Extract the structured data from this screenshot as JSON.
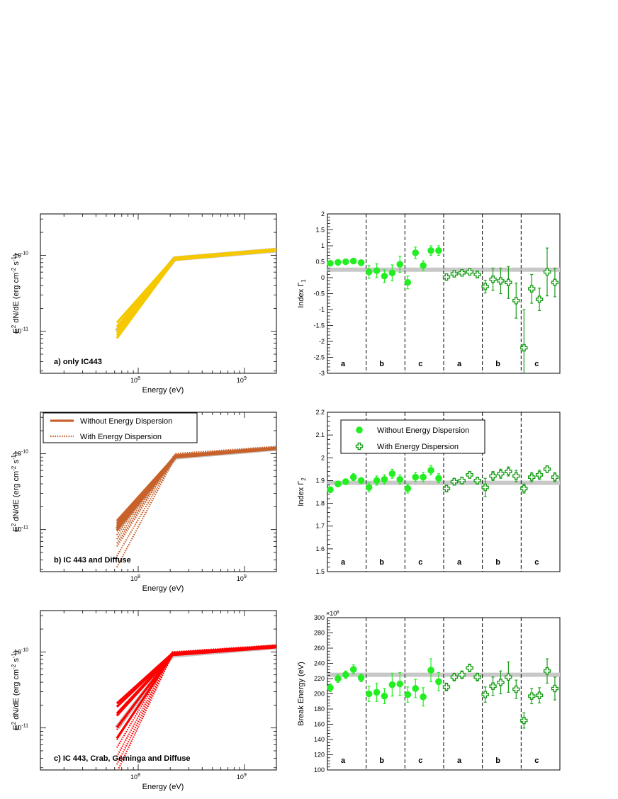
{
  "chart_data": [
    {
      "id": "sed-a",
      "type": "line",
      "xlabel": "Energy (eV)",
      "ylabel": "E^2 dN/dE (erg cm^-2 s^-1)",
      "xscale": "log",
      "yscale": "log",
      "xlim": [
        12000000,
        2000000000
      ],
      "ylim": [
        2.8e-12,
        3.5e-10
      ],
      "x_ticks": [
        {
          "v": 100000000,
          "base": "10",
          "exp": "8"
        },
        {
          "v": 1000000000,
          "base": "10",
          "exp": "9"
        }
      ],
      "y_ticks": [
        {
          "v": 1e-11,
          "base": "10",
          "exp": "-11"
        },
        {
          "v": 1e-10,
          "base": "10",
          "exp": "-10"
        }
      ],
      "annotation": "a) only IC443",
      "reference": {
        "color": "#c8c8c8",
        "low": 1e-11,
        "break": 9e-11,
        "high": 1.17e-10
      },
      "series": [
        {
          "color": "#f5c800",
          "style": "solid",
          "break_energy": 220000000,
          "e_min": 63000000,
          "curves": [
            [
              1.3e-11,
              9.3e-11,
              1.2e-10
            ],
            [
              1.15e-11,
              9.1e-11,
              1.19e-10
            ],
            [
              1.05e-11,
              9e-11,
              1.18e-10
            ],
            [
              9.6e-12,
              8.9e-11,
              1.17e-10
            ],
            [
              8.8e-12,
              8.8e-11,
              1.16e-10
            ],
            [
              8.1e-12,
              8.7e-11,
              1.15e-10
            ]
          ]
        }
      ]
    },
    {
      "id": "sed-b",
      "type": "line",
      "xlabel": "Energy (eV)",
      "ylabel": "E^2 dN/dE (erg cm^-2 s^-1)",
      "xscale": "log",
      "yscale": "log",
      "xlim": [
        12000000,
        2000000000
      ],
      "ylim": [
        2.8e-12,
        3.5e-10
      ],
      "x_ticks": [
        {
          "v": 100000000,
          "base": "10",
          "exp": "8"
        },
        {
          "v": 1000000000,
          "base": "10",
          "exp": "9"
        }
      ],
      "y_ticks": [
        {
          "v": 1e-11,
          "base": "10",
          "exp": "-11"
        },
        {
          "v": 1e-10,
          "base": "10",
          "exp": "-10"
        }
      ],
      "annotation": "b) IC 443 and Diffuse",
      "legend": [
        "Without Energy Dispersion",
        "With Energy Dispersion"
      ],
      "reference": {
        "color": "#c8c8c8",
        "low": 1e-11,
        "break": 9e-11,
        "high": 1.17e-10
      },
      "series": [
        {
          "name": "Without Energy Dispersion",
          "color": "#c8622a",
          "style": "solid",
          "break_energy": 225000000,
          "e_min": 63000000,
          "curves": [
            [
              1.3e-11,
              9.4e-11,
              1.19e-10
            ],
            [
              1.2e-11,
              9.2e-11,
              1.18e-10
            ],
            [
              1.12e-11,
              9.1e-11,
              1.17e-10
            ],
            [
              1.05e-11,
              9e-11,
              1.16e-10
            ],
            [
              9.8e-12,
              8.9e-11,
              1.15e-10
            ]
          ]
        },
        {
          "name": "With Energy Dispersion",
          "color": "#c8622a",
          "style": "dotted",
          "break_energy": 225000000,
          "e_min": 63000000,
          "curves": [
            [
              9.5e-12,
              1e-10,
              1.24e-10
            ],
            [
              8.5e-12,
              9.8e-11,
              1.22e-10
            ],
            [
              7.5e-12,
              9.6e-11,
              1.2e-10
            ],
            [
              6.6e-12,
              9.5e-11,
              1.18e-10
            ],
            [
              6e-12,
              9.4e-11,
              1.17e-10
            ],
            [
              4.5e-12,
              9.3e-11,
              1.16e-10
            ],
            [
              3.2e-12,
              9.2e-11,
              1.15e-10
            ]
          ]
        }
      ]
    },
    {
      "id": "sed-c",
      "type": "line",
      "xlabel": "Energy (eV)",
      "ylabel": "E^2 dN/dE (erg cm^-2 s^-1)",
      "xscale": "log",
      "yscale": "log",
      "xlim": [
        12000000,
        2000000000
      ],
      "ylim": [
        2.8e-12,
        3.5e-10
      ],
      "x_ticks": [
        {
          "v": 100000000,
          "base": "10",
          "exp": "8"
        },
        {
          "v": 1000000000,
          "base": "10",
          "exp": "9"
        }
      ],
      "y_ticks": [
        {
          "v": 1e-11,
          "base": "10",
          "exp": "-11"
        },
        {
          "v": 1e-10,
          "base": "10",
          "exp": "-10"
        }
      ],
      "annotation": "c) IC 443, Crab, Geminga and Diffuse",
      "reference": {
        "color": "#c8c8c8",
        "low": 1e-11,
        "break": 9e-11,
        "high": 1.17e-10
      },
      "series": [
        {
          "color": "#ff0000",
          "style": "solid",
          "break_energy": 210000000,
          "e_min": 63000000,
          "curves": [
            [
              2.1e-11,
              9.6e-11,
              1.2e-10
            ],
            [
              1.9e-11,
              9.5e-11,
              1.19e-10
            ],
            [
              1.55e-11,
              9.4e-11,
              1.18e-10
            ],
            [
              1.45e-11,
              9.3e-11,
              1.17e-10
            ],
            [
              1.02e-11,
              9.2e-11,
              1.16e-10
            ],
            [
              7.3e-12,
              9.1e-11,
              1.15e-10
            ]
          ]
        },
        {
          "color": "#ff0000",
          "style": "dotted",
          "break_energy": 210000000,
          "e_min": 63000000,
          "curves": [
            [
              9.5e-12,
              1e-10,
              1.23e-10
            ],
            [
              7e-12,
              9.8e-11,
              1.21e-10
            ],
            [
              5.5e-12,
              9.6e-11,
              1.19e-10
            ],
            [
              4.2e-12,
              9.5e-11,
              1.17e-10
            ],
            [
              3.3e-12,
              9.4e-11,
              1.16e-10
            ],
            [
              2.6e-12,
              9.3e-11,
              1.15e-10
            ]
          ]
        }
      ]
    },
    {
      "id": "index1",
      "type": "scatter",
      "ylabel": "Index Γ1",
      "ylabel_base": "Index Γ",
      "ylabel_sub": "1",
      "ylim": [
        -3,
        2
      ],
      "y_ticks": [
        "-3",
        "-2.5",
        "-2",
        "-1.5",
        "-1",
        "-0.5",
        "0",
        "0.5",
        "1",
        "1.5",
        "2"
      ],
      "reference": 0.25,
      "groups": [
        "a",
        "b",
        "c",
        "a",
        "b",
        "c"
      ],
      "series": [
        {
          "name": "Without Energy Dispersion",
          "points": [
            [
              0.45,
              0.05
            ],
            [
              0.48,
              0.05
            ],
            [
              0.5,
              0.05
            ],
            [
              0.52,
              0.05
            ],
            [
              0.47,
              0.05
            ],
            [
              0.18,
              0.2
            ],
            [
              0.22,
              0.22
            ],
            [
              0.05,
              0.2
            ],
            [
              0.15,
              0.25
            ],
            [
              0.42,
              0.25
            ],
            [
              -0.15,
              0.2
            ],
            [
              0.78,
              0.18
            ],
            [
              0.38,
              0.15
            ],
            [
              0.85,
              0.15
            ],
            [
              0.85,
              0.15
            ]
          ]
        },
        {
          "name": "With Energy Dispersion",
          "points": [
            [
              0.02,
              0.1
            ],
            [
              0.12,
              0.1
            ],
            [
              0.15,
              0.1
            ],
            [
              0.18,
              0.1
            ],
            [
              0.1,
              0.1
            ],
            [
              -0.28,
              0.2
            ],
            [
              -0.05,
              0.35
            ],
            [
              -0.1,
              0.4
            ],
            [
              -0.15,
              0.5
            ],
            [
              -0.72,
              0.55
            ],
            [
              -2.2,
              1.2
            ],
            [
              -0.35,
              0.45
            ],
            [
              -0.68,
              0.35
            ],
            [
              0.18,
              0.75
            ],
            [
              -0.15,
              0.45
            ]
          ]
        }
      ]
    },
    {
      "id": "index2",
      "type": "scatter",
      "ylabel": "Index Γ2",
      "ylabel_base": "Index Γ",
      "ylabel_sub": "2",
      "ylim": [
        1.5,
        2.2
      ],
      "y_ticks": [
        "1.5",
        "1.6",
        "1.7",
        "1.8",
        "1.9",
        "2",
        "2.1",
        "2.2"
      ],
      "reference": 1.89,
      "groups": [
        "a",
        "b",
        "c",
        "a",
        "b",
        "c"
      ],
      "legend": [
        "Without Energy Dispersion",
        "With Energy Dispersion"
      ],
      "series": [
        {
          "name": "Without Energy Dispersion",
          "points": [
            [
              1.86,
              0.012
            ],
            [
              1.885,
              0.012
            ],
            [
              1.895,
              0.012
            ],
            [
              1.915,
              0.015
            ],
            [
              1.9,
              0.012
            ],
            [
              1.87,
              0.02
            ],
            [
              1.9,
              0.02
            ],
            [
              1.905,
              0.02
            ],
            [
              1.93,
              0.02
            ],
            [
              1.905,
              0.02
            ],
            [
              1.865,
              0.02
            ],
            [
              1.915,
              0.02
            ],
            [
              1.915,
              0.02
            ],
            [
              1.945,
              0.02
            ],
            [
              1.91,
              0.02
            ]
          ]
        },
        {
          "name": "With Energy Dispersion",
          "points": [
            [
              1.865,
              0.015
            ],
            [
              1.895,
              0.015
            ],
            [
              1.9,
              0.015
            ],
            [
              1.925,
              0.015
            ],
            [
              1.9,
              0.015
            ],
            [
              1.87,
              0.04
            ],
            [
              1.92,
              0.02
            ],
            [
              1.93,
              0.02
            ],
            [
              1.94,
              0.02
            ],
            [
              1.92,
              0.025
            ],
            [
              1.865,
              0.02
            ],
            [
              1.915,
              0.02
            ],
            [
              1.925,
              0.02
            ],
            [
              1.95,
              0.015
            ],
            [
              1.915,
              0.02
            ]
          ]
        }
      ]
    },
    {
      "id": "break",
      "type": "scatter",
      "ylabel": "Break Energy (eV)",
      "y_multiplier": "×10^6",
      "ylim": [
        100,
        300
      ],
      "y_ticks": [
        "100",
        "120",
        "140",
        "160",
        "180",
        "200",
        "220",
        "240",
        "260",
        "280",
        "300"
      ],
      "reference": 225,
      "groups": [
        "a",
        "b",
        "c",
        "a",
        "b",
        "c"
      ],
      "series": [
        {
          "name": "Without Energy Dispersion",
          "points": [
            [
              208,
              5
            ],
            [
              220,
              5
            ],
            [
              225,
              5
            ],
            [
              232,
              6
            ],
            [
              221,
              5
            ],
            [
              200,
              10
            ],
            [
              202,
              12
            ],
            [
              197,
              10
            ],
            [
              212,
              15
            ],
            [
              213,
              15
            ],
            [
              199,
              10
            ],
            [
              207,
              12
            ],
            [
              196,
              12
            ],
            [
              231,
              15
            ],
            [
              216,
              12
            ]
          ]
        },
        {
          "name": "With Energy Dispersion",
          "points": [
            [
              209,
              5
            ],
            [
              222,
              5
            ],
            [
              225,
              5
            ],
            [
              234,
              5
            ],
            [
              222,
              5
            ],
            [
              199,
              10
            ],
            [
              210,
              12
            ],
            [
              215,
              15
            ],
            [
              222,
              20
            ],
            [
              206,
              12
            ],
            [
              165,
              10
            ],
            [
              197,
              10
            ],
            [
              198,
              10
            ],
            [
              230,
              16
            ],
            [
              207,
              15
            ]
          ]
        }
      ]
    }
  ]
}
